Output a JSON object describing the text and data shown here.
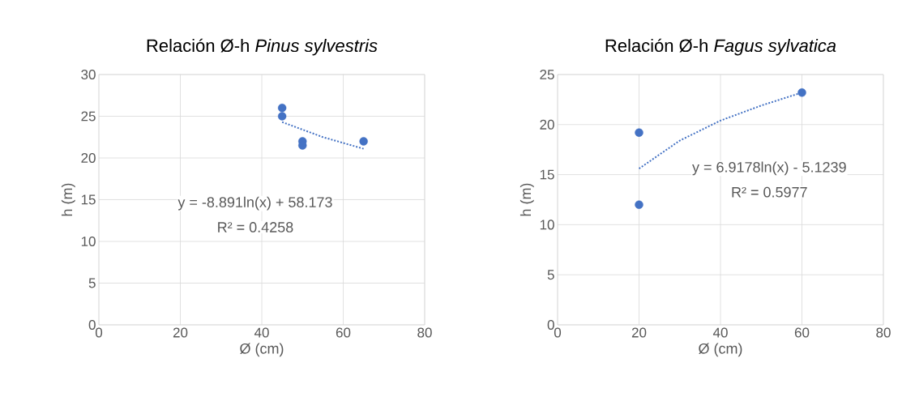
{
  "chart_data": [
    {
      "type": "scatter",
      "title": "Relación Ø-h  *Pinus sylvestris*",
      "xlabel": "Ø (cm)",
      "ylabel": "h (m)",
      "xlim": [
        0,
        80
      ],
      "xticks": [
        0,
        20,
        40,
        60,
        80
      ],
      "ylim": [
        0,
        30
      ],
      "yticks": [
        0,
        5,
        10,
        15,
        20,
        25,
        30
      ],
      "grid": true,
      "annotations": [
        "y = -8.891ln(x) + 58.173",
        "R² = 0.4258"
      ],
      "series": [
        {
          "marker": "circle",
          "color": "#4472c4",
          "x": [
            45,
            45,
            50,
            50,
            65
          ],
          "values": [
            26,
            25,
            22,
            21.5,
            22
          ]
        },
        {
          "type": "line",
          "line_style": "dotted",
          "marker": "none",
          "color": "#4472c4",
          "x": [
            45,
            50,
            55,
            60,
            65
          ],
          "values": [
            24.3,
            23.4,
            22.5,
            21.8,
            21.1
          ]
        }
      ]
    },
    {
      "type": "scatter",
      "title": "Relación Ø-h  *Fagus sylvatica*",
      "xlabel": "Ø (cm)",
      "ylabel": "h (m)",
      "xlim": [
        0,
        80
      ],
      "xticks": [
        0,
        20,
        40,
        60,
        80
      ],
      "ylim": [
        0,
        25
      ],
      "yticks": [
        0,
        5,
        10,
        15,
        20,
        25
      ],
      "grid": true,
      "annotations": [
        "y = 6.9178ln(x) - 5.1239",
        "R² = 0.5977"
      ],
      "series": [
        {
          "marker": "circle",
          "color": "#4472c4",
          "x": [
            20,
            20,
            60
          ],
          "values": [
            19.2,
            12,
            23.2
          ]
        },
        {
          "type": "line",
          "line_style": "dotted",
          "marker": "none",
          "color": "#4472c4",
          "x": [
            20,
            30,
            40,
            50,
            60
          ],
          "values": [
            15.6,
            18.4,
            20.4,
            21.9,
            23.2
          ]
        }
      ]
    }
  ]
}
